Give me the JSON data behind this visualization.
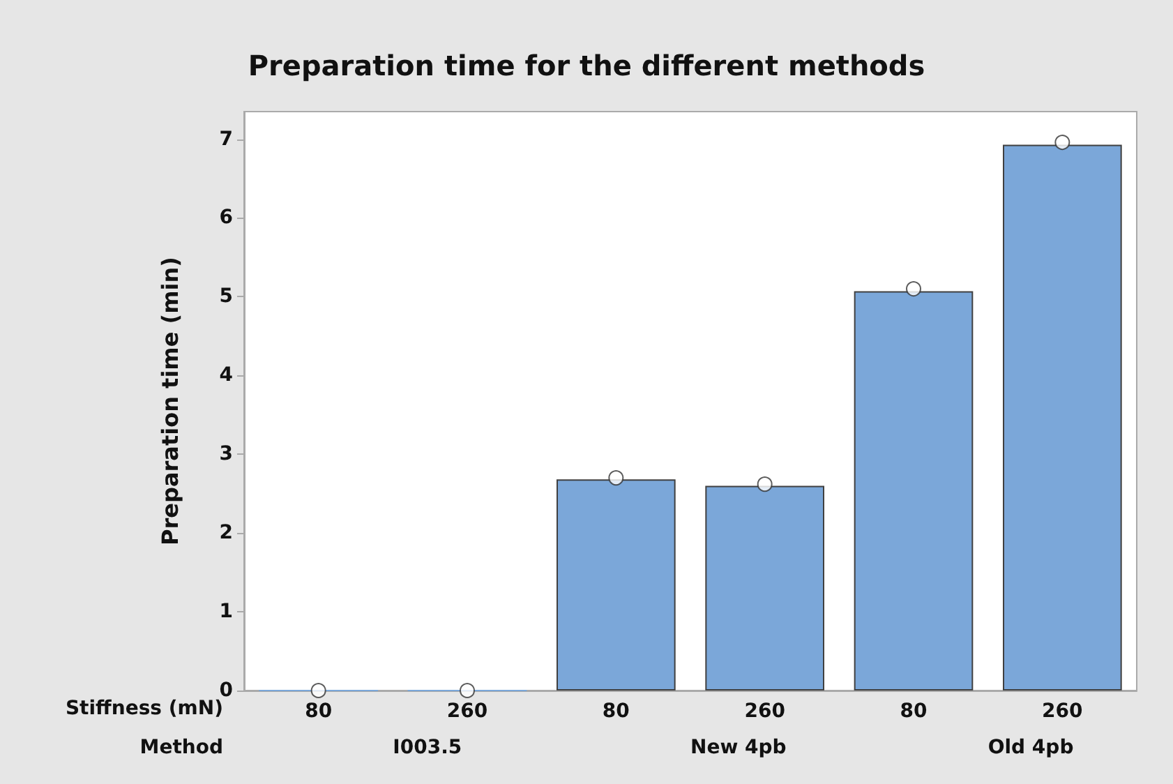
{
  "chart_data": {
    "type": "bar",
    "title": "Preparation time for the different methods",
    "xlabel": "Stiffness (mN)",
    "ylabel": "Preparation time (min)",
    "categories": [
      "80",
      "260",
      "80",
      "260",
      "80",
      "260"
    ],
    "series": [
      {
        "color": "#7ba7d9",
        "values": [
          0,
          0,
          2.68,
          2.6,
          5.07,
          6.93
        ]
      },
      {
        "type": "scatter",
        "color": "#333333",
        "values": [
          0,
          0,
          2.7,
          2.62,
          5.1,
          6.96
        ]
      }
    ],
    "annotations": [
      "Method",
      "I003.5",
      "New 4pb",
      "Old 4pb"
    ],
    "ylim": [
      0,
      7.35
    ],
    "yticks": [
      0,
      1,
      2,
      3,
      4,
      5,
      6,
      7
    ],
    "grid": false,
    "marker": "circle"
  }
}
